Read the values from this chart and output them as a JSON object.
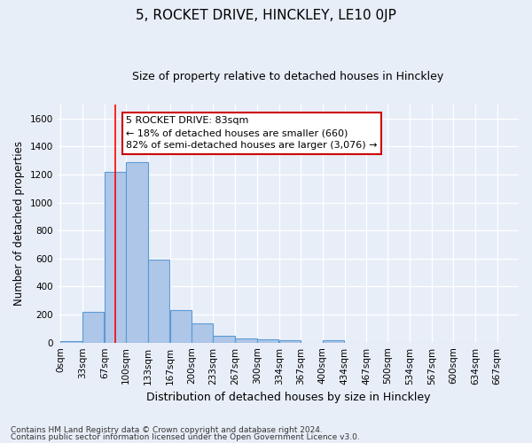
{
  "title": "5, ROCKET DRIVE, HINCKLEY, LE10 0JP",
  "subtitle": "Size of property relative to detached houses in Hinckley",
  "xlabel": "Distribution of detached houses by size in Hinckley",
  "ylabel": "Number of detached properties",
  "footnote1": "Contains HM Land Registry data © Crown copyright and database right 2024.",
  "footnote2": "Contains public sector information licensed under the Open Government Licence v3.0.",
  "property_size": 83,
  "property_label": "5 ROCKET DRIVE: 83sqm",
  "annotation_line1": "← 18% of detached houses are smaller (660)",
  "annotation_line2": "82% of semi-detached houses are larger (3,076) →",
  "bin_width": 33,
  "bin_starts": [
    0,
    33,
    67,
    100,
    133,
    167,
    200,
    233,
    267,
    300,
    334,
    367,
    400,
    434,
    467,
    500,
    534,
    567,
    600,
    634
  ],
  "bin_labels": [
    "0sqm",
    "33sqm",
    "67sqm",
    "100sqm",
    "133sqm",
    "167sqm",
    "200sqm",
    "233sqm",
    "267sqm",
    "300sqm",
    "334sqm",
    "367sqm",
    "400sqm",
    "434sqm",
    "467sqm",
    "500sqm",
    "534sqm",
    "567sqm",
    "600sqm",
    "634sqm",
    "667sqm"
  ],
  "bar_heights": [
    10,
    220,
    1220,
    1290,
    590,
    230,
    135,
    50,
    30,
    25,
    15,
    0,
    15,
    0,
    0,
    0,
    0,
    0,
    0,
    0
  ],
  "bar_color": "#aec6e8",
  "bar_edge_color": "#5b9bd5",
  "red_line_x": 83,
  "ylim": [
    0,
    1700
  ],
  "yticks": [
    0,
    200,
    400,
    600,
    800,
    1000,
    1200,
    1400,
    1600
  ],
  "bg_color": "#e8eef8",
  "plot_bg_color": "#e8eef8",
  "grid_color": "#ffffff",
  "title_fontsize": 11,
  "subtitle_fontsize": 9,
  "annotation_box_color": "#ffffff",
  "annotation_box_edge": "#cc0000",
  "annotation_text_size": 8.0,
  "footnote_fontsize": 6.5
}
